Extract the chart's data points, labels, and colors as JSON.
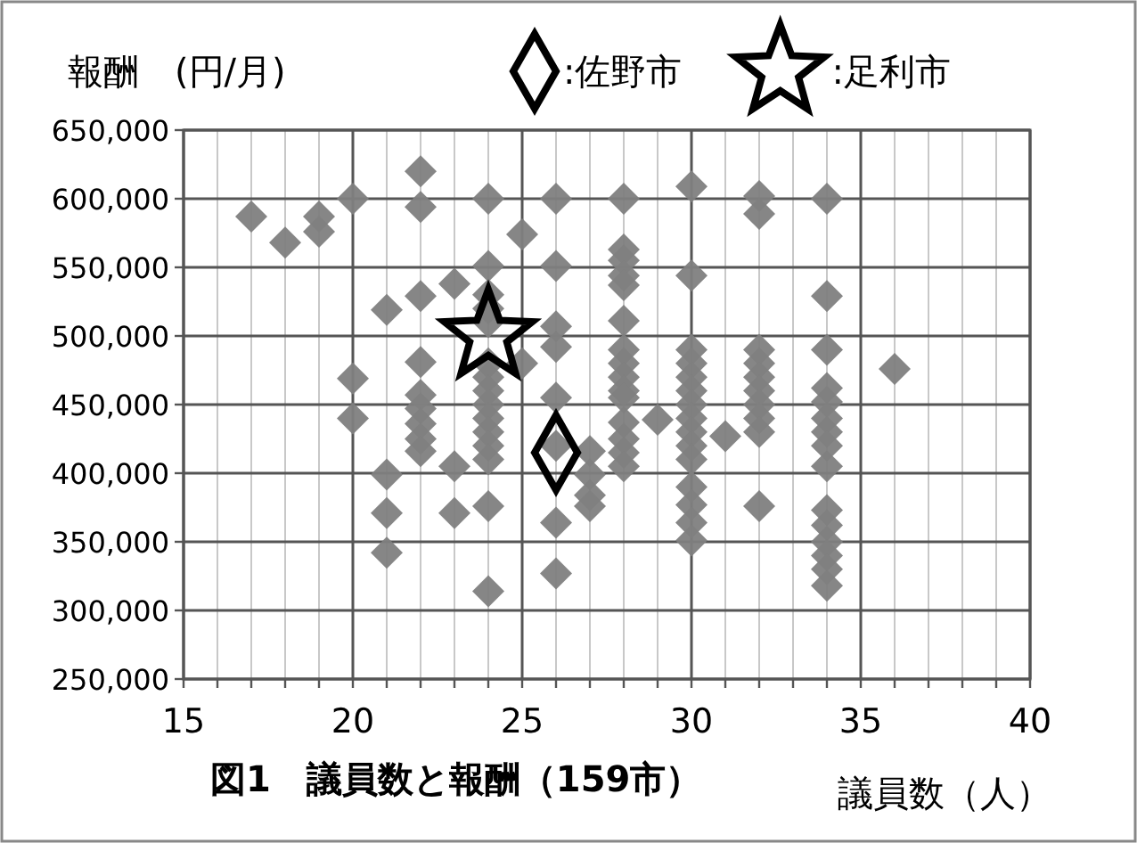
{
  "chart_data": {
    "type": "scatter",
    "title": "**図1　議員数と報酬（159市）**",
    "ylabel": "報酬　(円/月)",
    "xlabel": "議員数（人）",
    "legend": "top",
    "grid": true,
    "marker": "diamond",
    "xlim": [
      15,
      40
    ],
    "xticks": [
      15,
      {
        "value": 16,
        "label": null
      },
      {
        "value": 17,
        "label": null
      },
      {
        "value": 18,
        "label": null
      },
      {
        "value": 19,
        "label": null
      },
      20,
      {
        "value": 21,
        "label": null
      },
      {
        "value": 22,
        "label": null
      },
      {
        "value": 23,
        "label": null
      },
      {
        "value": 24,
        "label": null
      },
      25,
      {
        "value": 26,
        "label": null
      },
      {
        "value": 27,
        "label": null
      },
      {
        "value": 28,
        "label": null
      },
      {
        "value": 29,
        "label": null
      },
      30,
      {
        "value": 31,
        "label": null
      },
      {
        "value": 32,
        "label": null
      },
      {
        "value": 33,
        "label": null
      },
      {
        "value": 34,
        "label": null
      },
      35,
      {
        "value": 36,
        "label": null
      },
      {
        "value": 37,
        "label": null
      },
      {
        "value": 38,
        "label": null
      },
      {
        "value": 39,
        "label": null
      },
      40
    ],
    "ylim": [
      250000,
      650000
    ],
    "yticks": [
      {
        "value": 250000,
        "label": "250,000"
      },
      {
        "value": 300000,
        "label": "300,000"
      },
      {
        "value": 350000,
        "label": "350,000"
      },
      {
        "value": 400000,
        "label": "400,000"
      },
      {
        "value": 450000,
        "label": "450,000"
      },
      {
        "value": 500000,
        "label": "500,000"
      },
      {
        "value": 550000,
        "label": "550,000"
      },
      {
        "value": 600000,
        "label": "600,000"
      },
      {
        "value": 650000,
        "label": "650,000"
      }
    ],
    "series": [
      {
        "color": "#808080",
        "x": [
          17,
          18,
          19,
          19,
          20,
          20,
          20,
          21,
          21,
          21,
          21,
          22,
          22,
          22,
          22,
          22,
          22,
          22,
          22,
          22,
          23,
          23,
          23,
          24,
          24,
          24,
          24,
          24,
          24,
          24,
          24,
          24,
          24,
          24,
          24,
          24,
          24,
          24,
          25,
          25,
          26,
          26,
          26,
          26,
          26,
          26,
          26,
          26,
          27,
          27,
          27,
          27,
          28,
          28,
          28,
          28,
          28,
          28,
          28,
          28,
          28,
          28,
          28,
          28,
          28,
          28,
          28,
          29,
          30,
          30,
          30,
          30,
          30,
          30,
          30,
          30,
          30,
          30,
          30,
          30,
          30,
          30,
          30,
          31,
          32,
          32,
          32,
          32,
          32,
          32,
          32,
          32,
          32,
          32,
          34,
          34,
          34,
          34,
          34,
          34,
          34,
          34,
          34,
          34,
          34,
          34,
          34,
          34,
          34,
          36
        ],
        "values": [
          587000,
          568000,
          587000,
          576000,
          600000,
          469000,
          440000,
          519000,
          399000,
          371000,
          342000,
          620000,
          594000,
          529000,
          481000,
          457000,
          447000,
          436000,
          425000,
          416000,
          538000,
          405000,
          371000,
          600000,
          551000,
          530000,
          520000,
          510000,
          480000,
          470000,
          460000,
          450000,
          440000,
          430000,
          420000,
          410000,
          376000,
          314000,
          574000,
          480000,
          600000,
          551000,
          507000,
          492000,
          455000,
          420000,
          364000,
          327000,
          416000,
          399000,
          384000,
          376000,
          600000,
          563000,
          555000,
          544000,
          537000,
          511000,
          490000,
          480000,
          470000,
          460000,
          455000,
          437000,
          425000,
          415000,
          405000,
          439000,
          609000,
          544000,
          490000,
          480000,
          470000,
          460000,
          450000,
          440000,
          430000,
          420000,
          410000,
          390000,
          377000,
          364000,
          351000,
          427000,
          602000,
          589000,
          490000,
          480000,
          470000,
          460000,
          450000,
          440000,
          430000,
          376000,
          600000,
          529000,
          490000,
          462000,
          452000,
          440000,
          430000,
          420000,
          405000,
          373000,
          362000,
          350000,
          340000,
          330000,
          318000,
          476000
        ]
      },
      {
        "name": ":佐野市",
        "color": "#000000",
        "marker": "diamond",
        "x": [
          26
        ],
        "values": [
          415000
        ]
      },
      {
        "name": ":足利市",
        "color": "#000000",
        "marker": "star",
        "x": [
          24
        ],
        "values": [
          500000
        ]
      }
    ]
  }
}
